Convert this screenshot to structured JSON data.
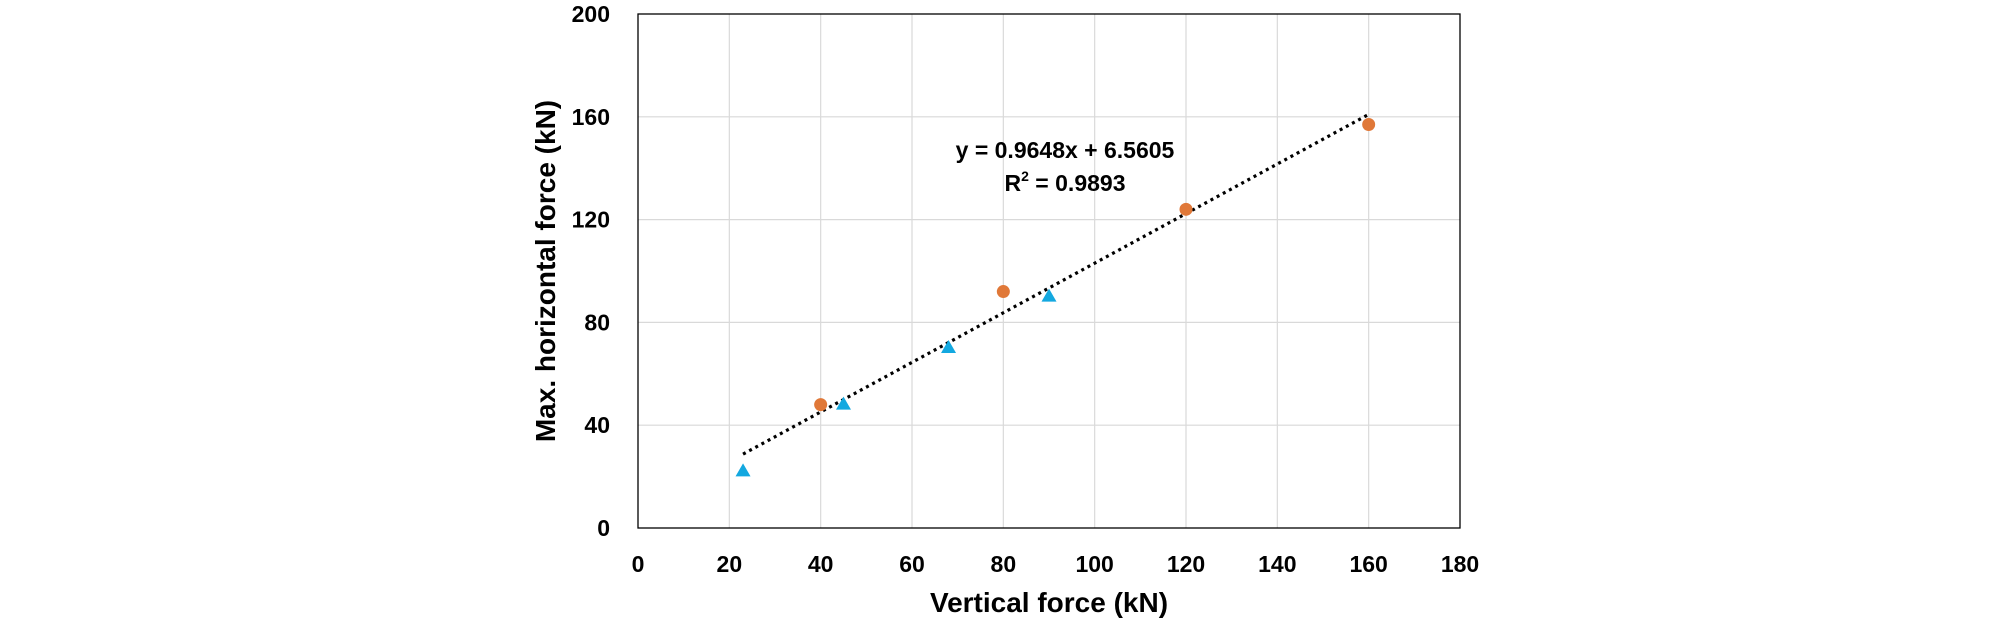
{
  "chart_data": {
    "type": "scatter",
    "title": "",
    "xlabel": "Vertical force (kN)",
    "ylabel": "Max. horizontal force (kN)",
    "xlim": [
      0,
      180
    ],
    "ylim": [
      0,
      200
    ],
    "x_ticks": [
      0,
      20,
      40,
      60,
      80,
      100,
      120,
      140,
      160,
      180
    ],
    "y_ticks": [
      0,
      40,
      80,
      120,
      160,
      200
    ],
    "grid": true,
    "legend": "none",
    "series": [
      {
        "marker": "circle",
        "color": "#E07838",
        "points": [
          {
            "x": 40,
            "y": 48
          },
          {
            "x": 80,
            "y": 92
          },
          {
            "x": 120,
            "y": 124
          },
          {
            "x": 160,
            "y": 157
          }
        ]
      },
      {
        "marker": "triangle",
        "color": "#13A8E0",
        "points": [
          {
            "x": 23,
            "y": 22
          },
          {
            "x": 45,
            "y": 48
          },
          {
            "x": 68,
            "y": 70
          },
          {
            "x": 90,
            "y": 90
          }
        ]
      }
    ],
    "trendline": {
      "style": "dotted",
      "color": "#000000",
      "slope": 0.9648,
      "intercept": 6.5605,
      "x_range": [
        23,
        160
      ],
      "equation": "y = 0.9648x + 6.5605",
      "r2_prefix": "R",
      "r2_sup": "2",
      "r2_suffix": " = 0.9893"
    }
  }
}
